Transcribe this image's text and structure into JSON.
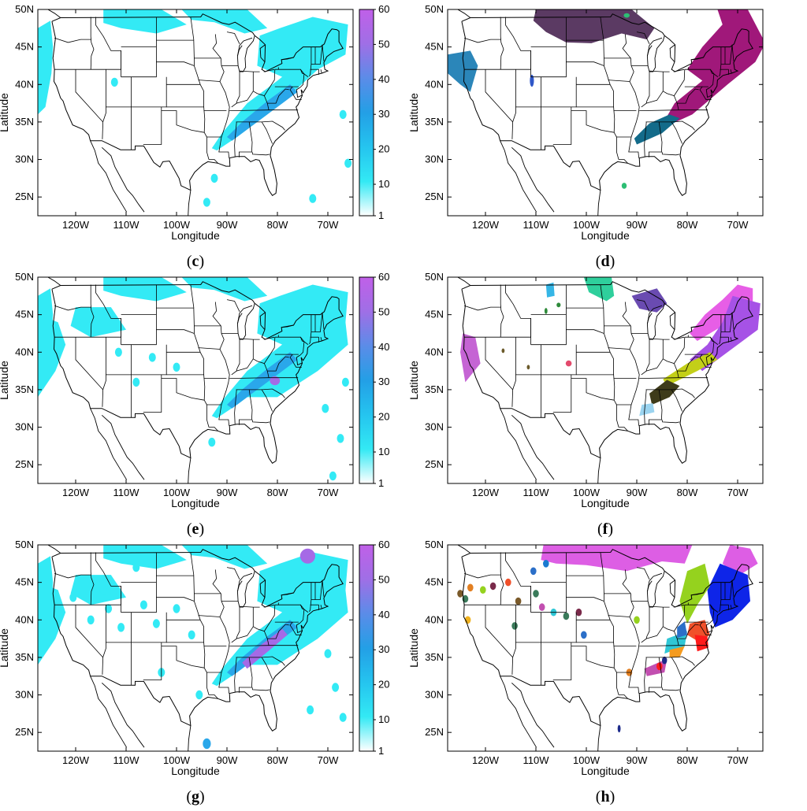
{
  "figure": {
    "longitude_label": "Longitude",
    "latitude_label": "Latitude",
    "lon_ticks": [
      "120W",
      "110W",
      "100W",
      "90W",
      "80W",
      "70W"
    ],
    "lat_ticks": [
      "25N",
      "30N",
      "35N",
      "40N",
      "45N",
      "50N"
    ],
    "colorbar_ticks": [
      "1",
      "10",
      "20",
      "30",
      "40",
      "50",
      "60"
    ],
    "colorbar_colors": [
      "#ffffff",
      "#33e9f4",
      "#25c4ef",
      "#239fe6",
      "#5b8ce8",
      "#9f6fe6",
      "#c060e8"
    ]
  },
  "panels": [
    {
      "letter": "c",
      "open": "(",
      "close": ")",
      "kind": "intensity"
    },
    {
      "letter": "d",
      "open": "(",
      "close": ")",
      "kind": "clusters"
    },
    {
      "letter": "e",
      "open": "(",
      "close": ")",
      "kind": "intensity"
    },
    {
      "letter": "f",
      "open": "(",
      "close": ")",
      "kind": "clusters"
    },
    {
      "letter": "g",
      "open": "(",
      "close": ")",
      "kind": "intensity"
    },
    {
      "letter": "h",
      "open": "(",
      "close": ")",
      "kind": "clusters"
    }
  ],
  "colors": {
    "precip_light": "#33eaf5",
    "precip_mid": "#2aa7ea",
    "precip_heavy": "#a56ae6",
    "d_clusters": [
      "#5b3a63",
      "#a0187a",
      "#136b8a",
      "#2b86b9",
      "#2f57c8",
      "#2dbe74"
    ],
    "f_clusters": [
      "#e75ee6",
      "#a652e6",
      "#6a4bb1",
      "#2fcf9c",
      "#35b6e6",
      "#c3cf18",
      "#3e3b1a",
      "#9bd4f0",
      "#c564d4",
      "#e34a6c",
      "#2e8a3a",
      "#6b5a2a"
    ],
    "h_clusters": [
      "#dd5ee4",
      "#0e25e8",
      "#95d21e",
      "#2fc7d6",
      "#f0502a",
      "#ff1a1a",
      "#2b6fc8",
      "#f59b1f",
      "#c24fb0",
      "#1c2a8a",
      "#7a5a2a",
      "#3a7a5a",
      "#e27f21",
      "#f0b21f",
      "#1a7ad0",
      "#7a2a4a"
    ]
  }
}
